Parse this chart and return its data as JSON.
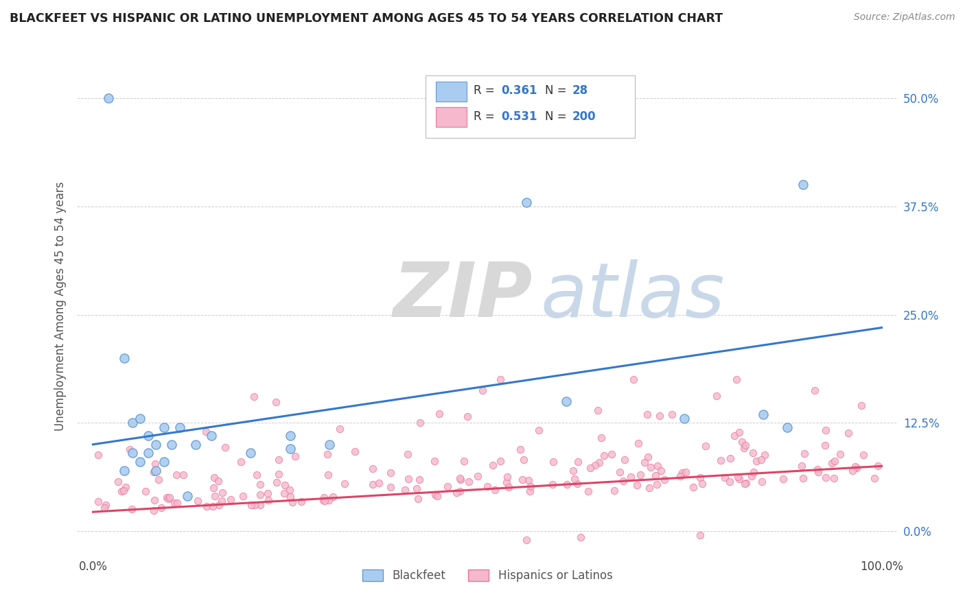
{
  "title": "BLACKFEET VS HISPANIC OR LATINO UNEMPLOYMENT AMONG AGES 45 TO 54 YEARS CORRELATION CHART",
  "source": "Source: ZipAtlas.com",
  "ylabel": "Unemployment Among Ages 45 to 54 years",
  "ytick_labels": [
    "0.0%",
    "12.5%",
    "25.0%",
    "37.5%",
    "50.0%"
  ],
  "ytick_values": [
    0.0,
    0.125,
    0.25,
    0.375,
    0.5
  ],
  "xlim": [
    -0.02,
    1.02
  ],
  "ylim": [
    -0.03,
    0.55
  ],
  "r_blackfeet": 0.361,
  "n_blackfeet": 28,
  "r_hispanic": 0.531,
  "n_hispanic": 200,
  "legend_labels": [
    "Blackfeet",
    "Hispanics or Latinos"
  ],
  "blackfeet_color": "#aaccf0",
  "blackfeet_edge": "#6699cc",
  "hispanic_color": "#f5b8cc",
  "hispanic_edge": "#e87799",
  "line_blackfeet": "#3377cc",
  "line_hispanic": "#dd4466",
  "background": "#ffffff",
  "bf_line_x0": 0.0,
  "bf_line_y0": 0.1,
  "bf_line_x1": 1.0,
  "bf_line_y1": 0.235,
  "h_line_x0": 0.0,
  "h_line_y0": 0.022,
  "h_line_x1": 1.0,
  "h_line_y1": 0.075
}
